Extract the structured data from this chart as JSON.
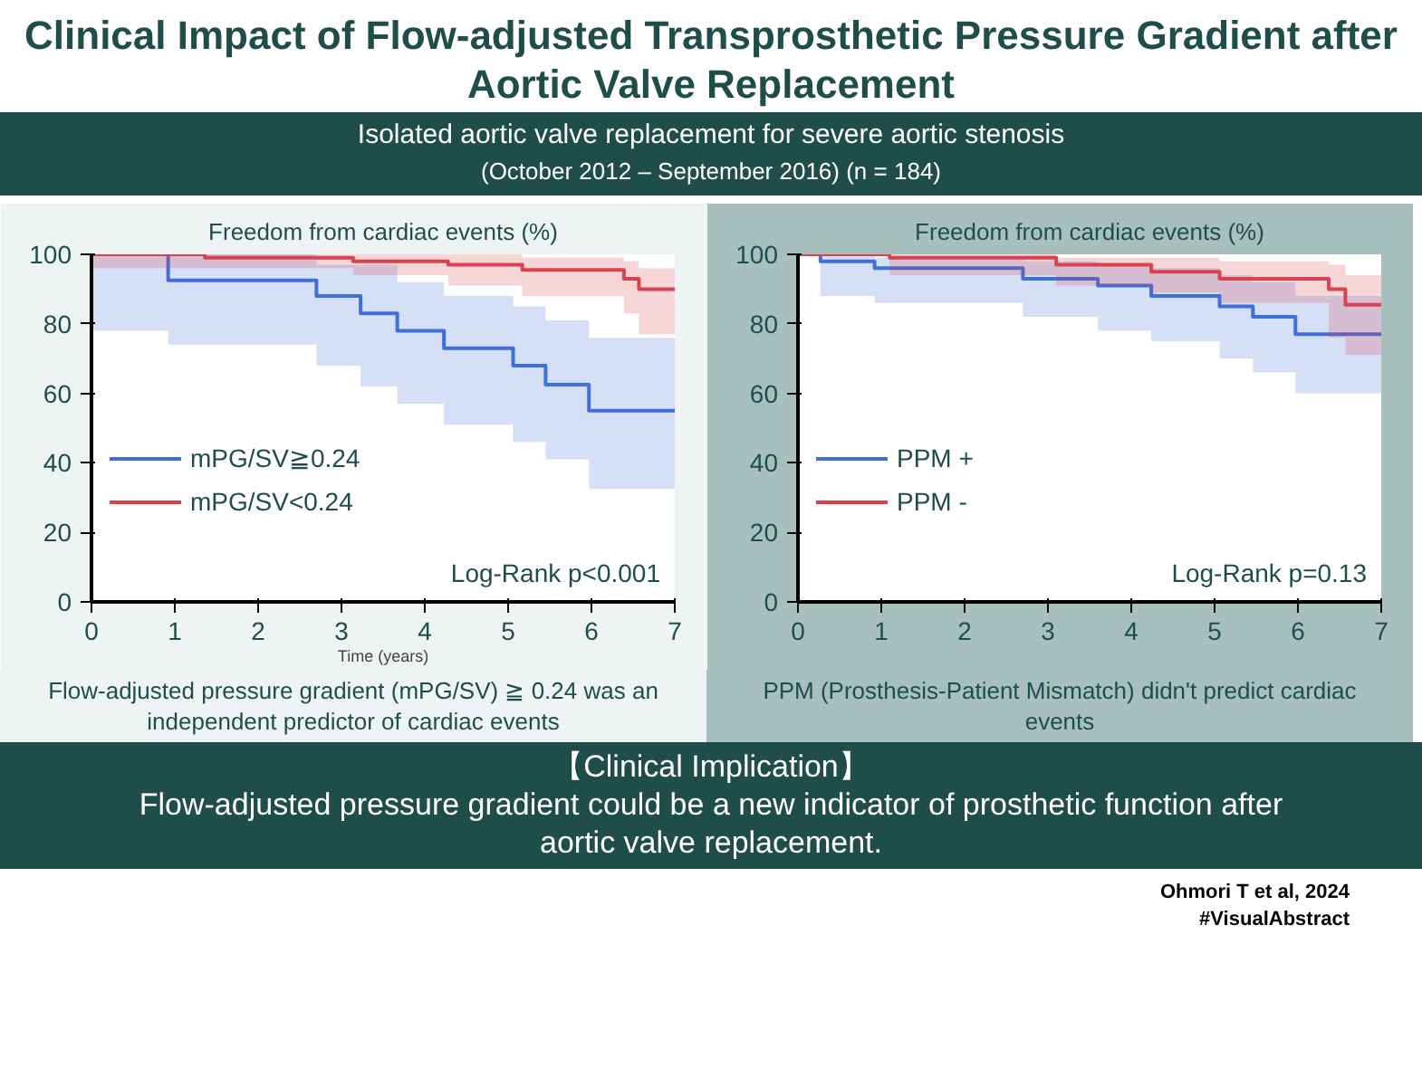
{
  "chart_data": [
    {
      "type": "step",
      "title": "Clinical Impact of Flow-adjusted Transprosthetic Pressure Gradient after Aortic Valve Replacement",
      "subtitle": "Isolated aortic valve replacement for severe aortic stenosis (October 2012 – September 2016) (n = 184)",
      "ylabel": "Freedom from cardiac events (%)",
      "xlabel": "Time (years)",
      "xlim": [
        0,
        7
      ],
      "xticks": [
        0,
        1,
        2,
        3,
        4,
        5,
        6,
        7
      ],
      "ylim": [
        0,
        100
      ],
      "yticks": [
        0,
        20,
        40,
        60,
        80,
        100
      ],
      "grid": false,
      "legend": "bottom left",
      "series": [
        {
          "name": "mPG/SV≧0.24",
          "color": "#3f6fd8",
          "x": [
            0,
            0.92,
            2.7,
            3.23,
            3.67,
            4.23,
            5.06,
            5.45,
            5.97,
            7
          ],
          "values": [
            100,
            92.5,
            88,
            83,
            78,
            73,
            68,
            62.5,
            55,
            55
          ],
          "lower": [
            78,
            74,
            68,
            62,
            57,
            51,
            46,
            41,
            32.5,
            32.5
          ],
          "upper": [
            100,
            100,
            97,
            97,
            92,
            88,
            85,
            81,
            76,
            76
          ]
        },
        {
          "name": "mPG/SV<0.24",
          "color": "#d9434e",
          "x": [
            0,
            1.36,
            3.14,
            4.28,
            5.17,
            6.39,
            6.57,
            7
          ],
          "values": [
            100,
            99,
            98,
            97,
            95.5,
            93,
            90,
            90
          ],
          "lower": [
            96,
            96,
            94,
            91,
            88,
            83,
            77,
            77
          ],
          "upper": [
            100,
            100,
            100,
            100,
            99,
            98,
            96,
            96
          ]
        }
      ],
      "annotations": [
        "Log-Rank p<0.001",
        "Flow-adjusted pressure gradient (mPG/SV) ≧ 0.24 was an independent predictor of cardiac events"
      ]
    },
    {
      "type": "step",
      "ylabel": "Freedom from cardiac events (%)",
      "xlim": [
        0,
        7
      ],
      "xticks": [
        0,
        1,
        2,
        3,
        4,
        5,
        6,
        7
      ],
      "ylim": [
        0,
        100
      ],
      "yticks": [
        0,
        20,
        40,
        60,
        80,
        100
      ],
      "grid": false,
      "legend": "bottom left",
      "series": [
        {
          "name": "PPM +",
          "color": "#3f6fd8",
          "x": [
            0,
            0.27,
            0.92,
            2.7,
            3.6,
            4.24,
            5.06,
            5.46,
            5.97,
            7
          ],
          "values": [
            100,
            98,
            96,
            93,
            91,
            88,
            85,
            82,
            77,
            77
          ],
          "lower": [
            100,
            88,
            86,
            82,
            78,
            75,
            70,
            66,
            60,
            60
          ],
          "upper": [
            100,
            100,
            99,
            98,
            97,
            96,
            94,
            92,
            88,
            88
          ]
        },
        {
          "name": "PPM -",
          "color": "#d9434e",
          "x": [
            0,
            1.1,
            3.1,
            4.24,
            5.06,
            6.37,
            6.57,
            7
          ],
          "values": [
            100,
            99,
            97,
            95,
            93,
            90,
            85.5,
            85.5
          ],
          "lower": [
            100,
            94,
            91,
            89,
            86,
            76,
            71,
            71
          ],
          "upper": [
            100,
            100,
            99,
            99,
            98,
            97,
            94,
            94
          ]
        }
      ],
      "annotations": [
        "Log-Rank p=0.13",
        "PPM (Prosthesis-Patient Mismatch) didn't predict cardiac events",
        "【Clinical Implication】",
        "Flow-adjusted pressure gradient could be a new indicator of prosthetic function after aortic valve replacement.",
        "Ohmori T et al, 2024",
        "#VisualAbstract"
      ]
    }
  ]
}
